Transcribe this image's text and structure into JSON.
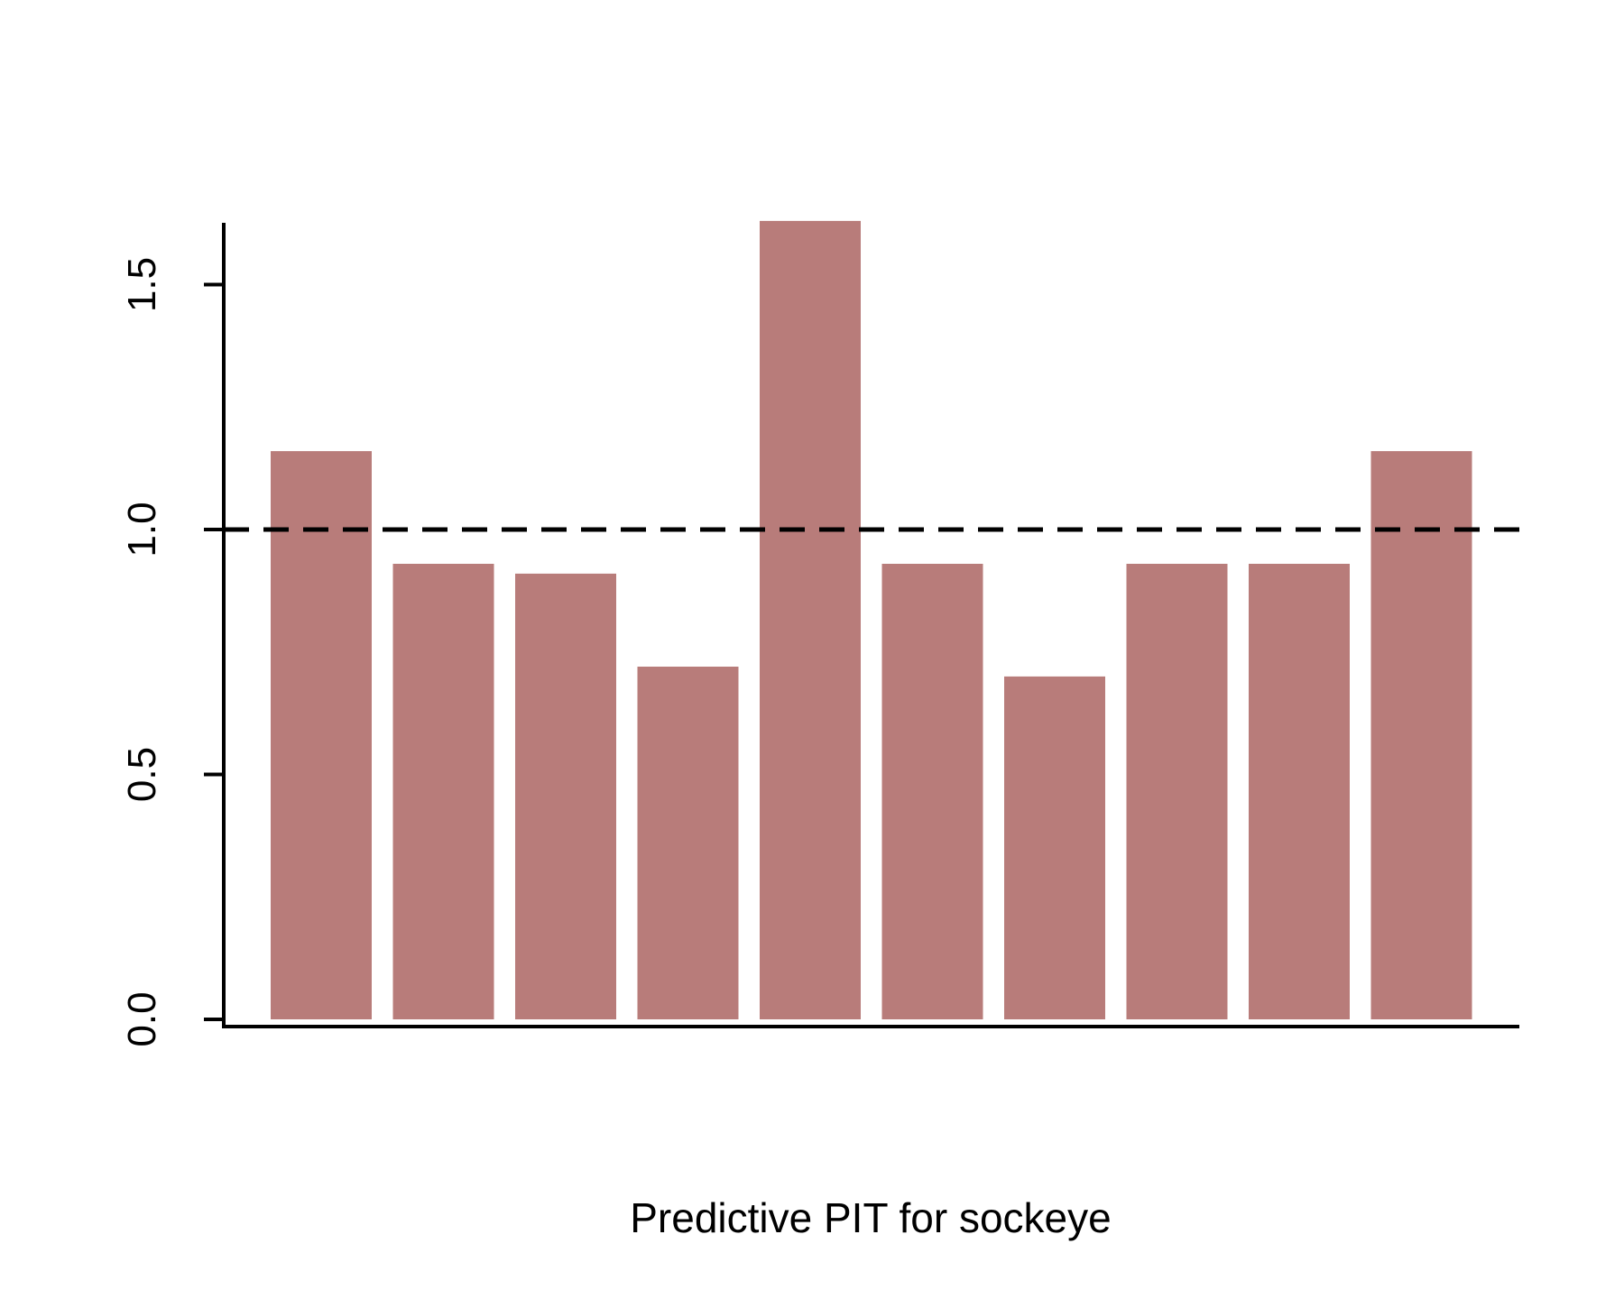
{
  "chart_data": {
    "type": "bar",
    "title": "",
    "xlabel": "Predictive PIT for sockeye",
    "ylabel": "",
    "ylim": [
      0,
      1.63
    ],
    "yticks": [
      "0.0",
      "0.5",
      "1.0",
      "1.5"
    ],
    "values": [
      1.16,
      0.93,
      0.91,
      0.72,
      1.63,
      0.93,
      0.7,
      0.93,
      0.93,
      1.16
    ],
    "reference_line": {
      "y": 1.0,
      "style": "dashed"
    },
    "grid": false,
    "legend": "none",
    "colors": {
      "bar": "#b87c7a",
      "reference_line": "#000000",
      "axis": "#000000"
    }
  }
}
